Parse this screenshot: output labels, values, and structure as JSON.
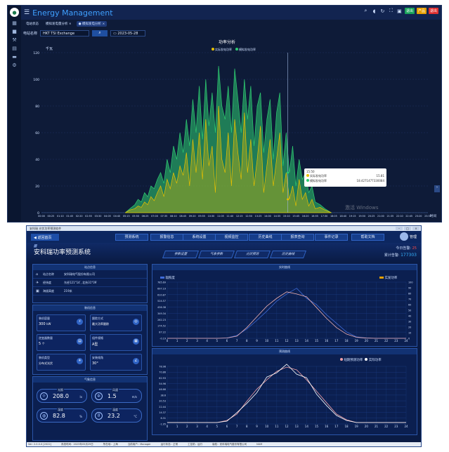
{
  "panel1": {
    "app_title": "Energy Management",
    "tabs": [
      "电站状态",
      "模拟发电量分析 ×",
      "● 模拟发电分析 ×"
    ],
    "filter": {
      "station_label": "电站名称",
      "station_value": "HKT TSI Exchange",
      "date_value": "2023-05-28"
    },
    "badges": [
      "退出",
      "产品",
      "退出"
    ],
    "chart_data": {
      "type": "area",
      "title": "功率分析",
      "ylabel": "千瓦",
      "xlabel": "时间",
      "ylim": [
        0,
        120
      ],
      "yticks": [
        0,
        20,
        40,
        60,
        80,
        100,
        120
      ],
      "xticks": [
        "00:00",
        "00:25",
        "01:10",
        "01:45",
        "02:20",
        "02:55",
        "03:30",
        "04:05",
        "04:40",
        "05:15",
        "05:50",
        "06:25",
        "07:00",
        "07:35",
        "08:10",
        "08:45",
        "09:20",
        "09:55",
        "10:30",
        "11:05",
        "11:40",
        "12:15",
        "12:50",
        "13:25",
        "14:00",
        "14:35",
        "15:10",
        "15:45",
        "16:20",
        "16:55",
        "17:30",
        "18:05",
        "18:40",
        "19:15",
        "19:50",
        "20:25",
        "21:00",
        "21:35",
        "22:10",
        "22:45",
        "23:20",
        "23:55"
      ],
      "series": [
        {
          "name": "实际发电功率",
          "color": "#e8c000",
          "x": [
            5.2,
            5.5,
            5.8,
            6.0,
            6.2,
            6.4,
            6.6,
            6.8,
            7.0,
            7.2,
            7.4,
            7.6,
            7.8,
            8.0,
            8.2,
            8.4,
            8.6,
            8.8,
            9.0,
            9.2,
            9.4,
            9.6,
            9.8,
            10.0,
            10.2,
            10.4,
            10.6,
            10.8,
            11.0,
            11.2,
            11.4,
            11.6,
            11.8,
            12.0,
            12.2,
            12.4,
            12.6,
            12.8,
            13.0,
            13.2,
            13.4,
            13.6,
            13.8,
            14.0,
            14.2,
            14.4,
            14.6,
            14.8,
            15.0,
            15.2,
            15.4,
            15.6,
            15.8,
            16.0,
            16.2,
            16.4,
            16.6,
            16.8,
            17.0,
            17.3,
            17.6,
            18.0
          ],
          "y": [
            0,
            2,
            3,
            5,
            4,
            8,
            6,
            12,
            9,
            15,
            20,
            12,
            25,
            18,
            30,
            22,
            35,
            28,
            45,
            20,
            55,
            30,
            60,
            25,
            70,
            35,
            50,
            15,
            80,
            40,
            30,
            60,
            20,
            70,
            45,
            25,
            75,
            30,
            55,
            20,
            40,
            65,
            15,
            35,
            55,
            20,
            40,
            60,
            15,
            30,
            10,
            20,
            5,
            25,
            10,
            15,
            5,
            10,
            3,
            4,
            2,
            0
          ]
        },
        {
          "name": "模拟发电功率",
          "color": "#2ecc71",
          "x": [
            5.2,
            5.5,
            5.8,
            6.0,
            6.2,
            6.4,
            6.6,
            6.8,
            7.0,
            7.2,
            7.4,
            7.6,
            7.8,
            8.0,
            8.2,
            8.4,
            8.6,
            8.8,
            9.0,
            9.2,
            9.4,
            9.6,
            9.8,
            10.0,
            10.2,
            10.4,
            10.6,
            10.8,
            11.0,
            11.2,
            11.4,
            11.6,
            11.8,
            12.0,
            12.2,
            12.4,
            12.6,
            12.8,
            13.0,
            13.2,
            13.4,
            13.6,
            13.8,
            14.0,
            14.2,
            14.4,
            14.6,
            14.8,
            15.0,
            15.2,
            15.4,
            15.6,
            15.8,
            16.0,
            16.2,
            16.4,
            16.6,
            16.8,
            17.0,
            17.3,
            17.6,
            18.0
          ],
          "y": [
            0,
            3,
            6,
            10,
            8,
            15,
            12,
            20,
            18,
            25,
            30,
            22,
            40,
            30,
            50,
            40,
            60,
            45,
            70,
            50,
            85,
            60,
            95,
            55,
            100,
            65,
            90,
            60,
            110,
            80,
            70,
            95,
            60,
            108,
            85,
            60,
            100,
            70,
            95,
            50,
            80,
            90,
            45,
            70,
            85,
            40,
            75,
            90,
            35,
            60,
            30,
            50,
            20,
            40,
            25,
            30,
            15,
            20,
            8,
            6,
            3,
            0
          ]
        }
      ],
      "cursor_x": 15.3,
      "tooltip": {
        "time": "15:50",
        "rows": [
          {
            "name": "实际发电功率",
            "value": "15.81"
          },
          {
            "name": "模拟发电功率",
            "value": "18.4271477330084"
          }
        ]
      }
    }
  },
  "panel2": {
    "window_title": "安科瑞 光伏功率预测软件",
    "back_label": "返回首页",
    "nav_buttons": [
      "预测系统",
      "报警信息",
      "系统设置",
      "视频监控",
      "历史曲线",
      "报表查询",
      "事件记录",
      "帮助文档"
    ],
    "user_name": "管理",
    "app_title": "安科瑞功率预测系统",
    "top_tabs": [
      "参数设置",
      "气象参数",
      "光伏预测",
      "历史曲线"
    ],
    "stats": {
      "today_label": "今日告警:",
      "today_value": "25",
      "total_label": "累计告警:",
      "total_value": "177303"
    },
    "station_info": {
      "header": "站点信息",
      "rows": [
        {
          "key": "站点名称",
          "value": "安科瑞电气股份有限公司"
        },
        {
          "key": "经纬度",
          "value": "东经121°14′, 北纬31°09′"
        },
        {
          "key": "海拔高度",
          "value": "219米"
        }
      ]
    },
    "overview": {
      "header": "装机信息",
      "cards": [
        {
          "label": "装机容量",
          "value": "300",
          "unit": "kW"
        },
        {
          "label": "跟踪方式",
          "value": "最大功率跟踪"
        },
        {
          "label": "逆变器数量",
          "value": "5",
          "unit": "个"
        },
        {
          "label": "组件规格",
          "value": "A型"
        },
        {
          "label": "装机类型",
          "value": "分布式光伏"
        },
        {
          "label": "安装倾角",
          "value": "30°"
        }
      ]
    },
    "weather": {
      "header": "气象信息",
      "items": [
        {
          "label": "光照",
          "value": "208.0",
          "unit": "lx"
        },
        {
          "label": "风速",
          "value": "1.5",
          "unit": "m/s"
        },
        {
          "label": "湿度",
          "value": "82.8",
          "unit": "%"
        },
        {
          "label": "温度",
          "value": "23.2",
          "unit": "°C"
        }
      ]
    },
    "chart_data": [
      {
        "type": "line",
        "title": "实时曲线",
        "left_legend": "辐照度",
        "right_legend": "实发功率",
        "ylim": [
          -0.19,
          785.69
        ],
        "yticks": [
          785.69,
          697.19,
          610.87,
          524.57,
          436.38,
          349.34,
          262.23,
          174.52,
          87.22,
          -0.19
        ],
        "y2ticks": [
          0,
          10,
          20,
          30,
          40,
          50,
          60,
          70,
          80,
          90,
          100
        ],
        "x": [
          0,
          1,
          2,
          3,
          4,
          5,
          6,
          7,
          8,
          9,
          10,
          11,
          12,
          13,
          14,
          15,
          16,
          17,
          18,
          19,
          20,
          21,
          22,
          23,
          24
        ],
        "xticks": [
          0,
          1,
          2,
          3,
          4,
          5,
          6,
          7,
          8,
          9,
          10,
          11,
          12,
          13,
          14,
          15,
          16,
          17,
          18,
          19,
          20,
          21,
          22,
          23,
          24
        ],
        "series": [
          {
            "name": "辐照度",
            "color": "#3f6bd8",
            "values": [
              0,
              0,
              0,
              0,
              0,
              0,
              5,
              40,
              130,
              250,
              380,
              520,
              620,
              700,
              560,
              470,
              330,
              210,
              90,
              20,
              5,
              0,
              0,
              0,
              0
            ]
          },
          {
            "name": "实发功率",
            "color": "#f0b0b0",
            "values": [
              0,
              0,
              0,
              0,
              0,
              0,
              4,
              30,
              150,
              300,
              450,
              560,
              650,
              620,
              580,
              430,
              280,
              150,
              60,
              15,
              3,
              0,
              0,
              0,
              0
            ]
          }
        ]
      },
      {
        "type": "line",
        "title": "预测曲线",
        "series": [
          {
            "name": "短期预测功率",
            "color": "#f0a0a8",
            "values": [
              0,
              0,
              0,
              0,
              0,
              0,
              3,
              12,
              30,
              47,
              60,
              72,
              78,
              74,
              60,
              44,
              28,
              12,
              4,
              0,
              0,
              0,
              0,
              0,
              0
            ]
          },
          {
            "name": "实际功率",
            "color": "#ffffff",
            "values": [
              0,
              0,
              0,
              0,
              0,
              0,
              2,
              14,
              27,
              42,
              64,
              70,
              82,
              68,
              63,
              40,
              24,
              10,
              3,
              0,
              0,
              0,
              0,
              0,
              0
            ]
          }
        ],
        "ylim": [
          -1.95,
          78.98
        ],
        "yticks": [
          78.98,
          70.86,
          62.93,
          54.96,
          46.66,
          38.6,
          30.53,
          22.44,
          14.37,
          6.31,
          -1.95
        ],
        "x": [
          0,
          1,
          2,
          3,
          4,
          5,
          6,
          7,
          8,
          9,
          10,
          11,
          12,
          13,
          14,
          15,
          16,
          17,
          18,
          19,
          20,
          21,
          22,
          23,
          24
        ],
        "xticks": [
          0,
          1,
          2,
          3,
          4,
          5,
          6,
          7,
          8,
          9,
          10,
          11,
          12,
          13,
          14,
          15,
          16,
          17,
          18,
          19,
          20,
          21,
          22,
          23,
          24
        ]
      }
    ],
    "status_bar": [
      "Ver: 2.0.0.0 [2022]",
      "系统时间：2023年05月29日",
      "所在地：上海",
      "当前用户：Manager",
      "运行状态：正常",
      "工控机：运行",
      "版权：安科瑞电气股份有限公司",
      "NUM"
    ]
  }
}
